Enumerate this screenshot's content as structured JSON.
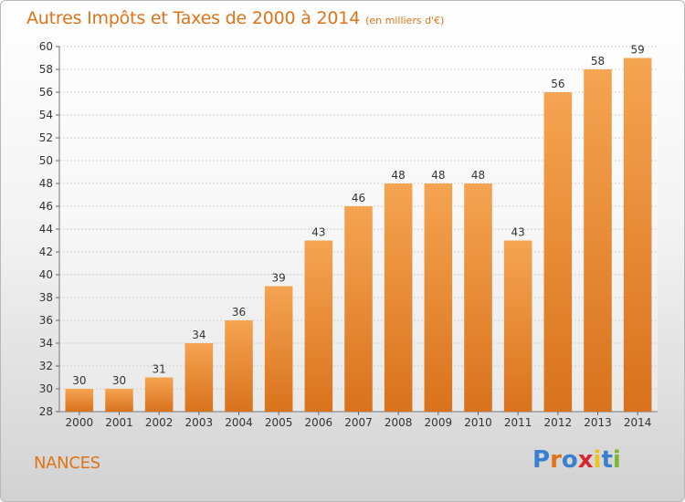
{
  "title": "Autres Impôts et Taxes de 2000 à 2014",
  "unit": "(en milliers d'€)",
  "place": "NANCES",
  "logo": {
    "text": "Proxiti",
    "letter_colors": [
      "#3a7fd0",
      "#e07318",
      "#3a7fd0",
      "#d8262e",
      "#e8c51a",
      "#3a7fd0",
      "#7cb82f"
    ]
  },
  "colors": {
    "accent": "#e07318",
    "bar_light": "#f5a452",
    "bar_dark": "#d9721c"
  },
  "chart_data": {
    "type": "bar",
    "categories": [
      "2000",
      "2001",
      "2002",
      "2003",
      "2004",
      "2005",
      "2006",
      "2007",
      "2008",
      "2009",
      "2010",
      "2011",
      "2012",
      "2013",
      "2014"
    ],
    "values": [
      30,
      30,
      31,
      34,
      36,
      39,
      43,
      46,
      48,
      48,
      48,
      43,
      56,
      58,
      59
    ],
    "ylim": [
      28,
      60
    ],
    "yticks": [
      28,
      30,
      32,
      34,
      36,
      38,
      40,
      42,
      44,
      46,
      48,
      50,
      52,
      54,
      56,
      58,
      60
    ],
    "grid": true,
    "data_labels": true
  }
}
